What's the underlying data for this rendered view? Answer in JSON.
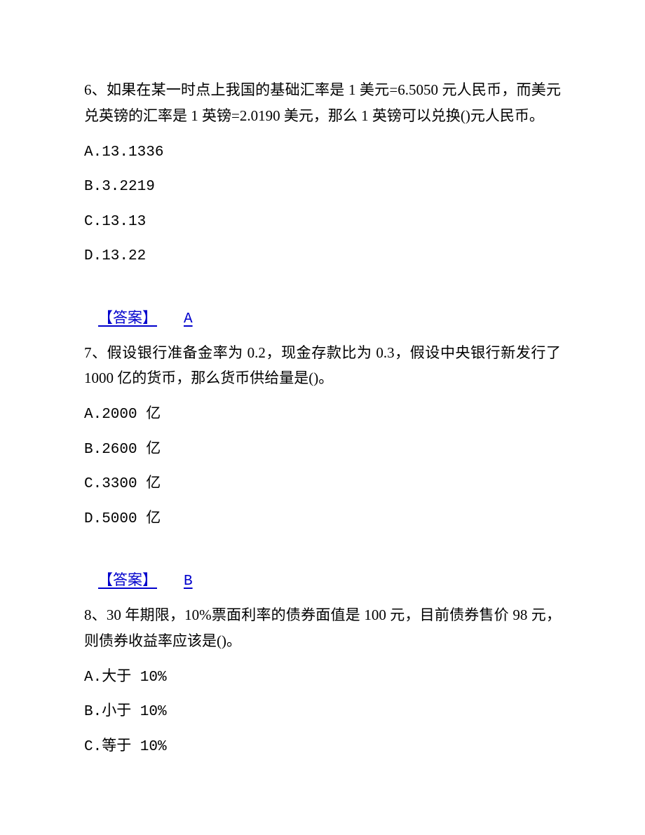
{
  "page": {
    "background_color": "#ffffff",
    "text_color": "#000000",
    "answer_color": "#0000cc",
    "font_family": "SimSun",
    "font_size_pt": 16
  },
  "questions": [
    {
      "number": "6",
      "stem": "6、如果在某一时点上我国的基础汇率是 1 美元=6.5050 元人民币，而美元兑英镑的汇率是 1 英镑=2.0190 美元，那么 1 英镑可以兑换()元人民币。",
      "options": {
        "A": "A.13.1336",
        "B": "B.3.2219",
        "C": "C.13.13",
        "D": "D.13.22"
      },
      "answer_label": "【答案】",
      "answer": "A"
    },
    {
      "number": "7",
      "stem": "7、假设银行准备金率为 0.2，现金存款比为 0.3，假设中央银行新发行了 1000 亿的货币，那么货币供给量是()。",
      "options": {
        "A": "A.2000 亿",
        "B": "B.2600 亿",
        "C": "C.3300 亿",
        "D": "D.5000 亿"
      },
      "answer_label": "【答案】",
      "answer": "B"
    },
    {
      "number": "8",
      "stem": "8、30 年期限，10%票面利率的债券面值是 100 元，目前债券售价 98 元，则债券收益率应该是()。",
      "options": {
        "A": "A.大于 10%",
        "B": "B.小于 10%",
        "C": "C.等于 10%"
      }
    }
  ]
}
